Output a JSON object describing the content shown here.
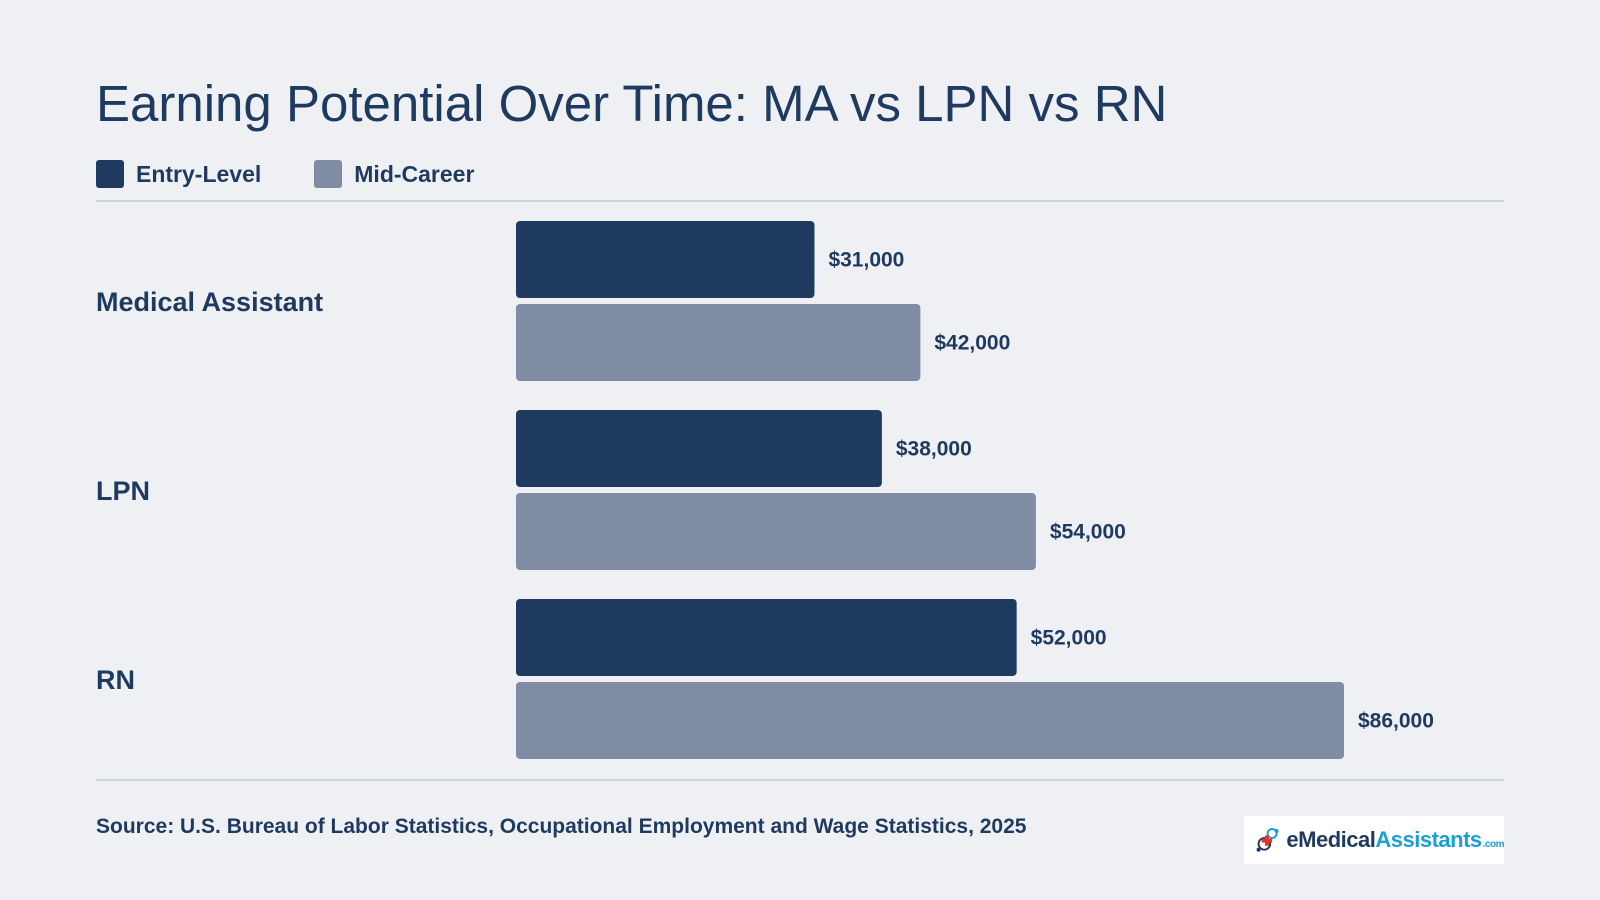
{
  "title": "Earning Potential Over Time: MA vs LPN vs RN",
  "legend": [
    {
      "label": "Entry-Level",
      "color": "#1f3a5f"
    },
    {
      "label": "Mid-Career",
      "color": "#7f8ca3"
    }
  ],
  "source": "Source: U.S. Bureau of Labor Statistics, Occupational Employment and Wage Statistics, 2025",
  "logo": {
    "text_e": "e",
    "text_medical": "Medical",
    "text_assistants": "Assistants",
    "text_com": ".com",
    "icon": "medical-cross-icon"
  },
  "chart_data": {
    "type": "bar",
    "orientation": "horizontal",
    "title": "Earning Potential Over Time: MA vs LPN vs RN",
    "categories": [
      "Medical Assistant",
      "LPN",
      "RN"
    ],
    "series": [
      {
        "name": "Entry-Level",
        "values": [
          31000,
          38000,
          52000
        ],
        "labels": [
          "$31,000",
          "$38,000",
          "$52,000"
        ],
        "color": "#1f3a5f"
      },
      {
        "name": "Mid-Career",
        "values": [
          42000,
          54000,
          86000
        ],
        "labels": [
          "$42,000",
          "$54,000",
          "$86,000"
        ],
        "color": "#7f8ca3"
      }
    ],
    "grid": false,
    "legend_position": "top-left"
  }
}
